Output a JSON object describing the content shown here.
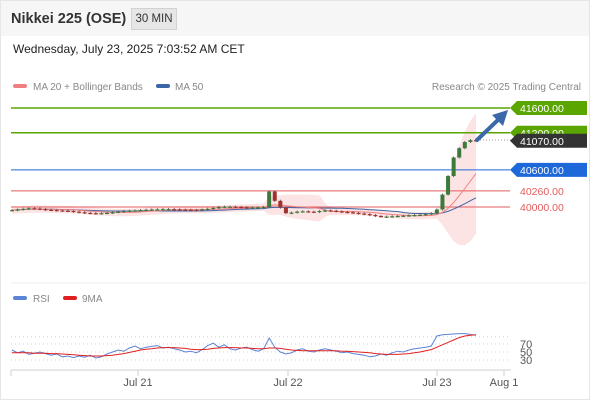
{
  "header": {
    "title": "Nikkei 225 (OSE)",
    "timeframe": "30 MIN"
  },
  "datetime": "Wednesday, July 23, 2025 7:03:52 AM CET",
  "attribution": "Research © 2025 Trading Central",
  "colors": {
    "ma20": "#f08080",
    "bands": "#fde4e4",
    "ma50": "#3b66a8",
    "candle_up": "#3b7a3b",
    "candle_down": "#a0322e",
    "target": "#5aa500",
    "pivot": "#1f68d9",
    "support": "#e35b5b",
    "rsi": "#5b84d6",
    "rsi_ma": "#e02020",
    "arrow": "#3a68a8"
  },
  "legend": [
    {
      "name": "MA 20 + Bollinger Bands",
      "color": "#f08080"
    },
    {
      "name": "MA 50",
      "color": "#3b66a8"
    }
  ],
  "chart_data": [
    {
      "type": "candlestick",
      "title": "Nikkei 225 (OSE)",
      "x_axis": {
        "ticks": [
          "Jul 21",
          "Jul 22",
          "Jul 23",
          "Aug 1"
        ]
      },
      "levels": [
        {
          "label": "41600.00",
          "value": 41600,
          "kind": "target",
          "color": "#5aa500",
          "text_color": "#ffffff"
        },
        {
          "label": "41200.00",
          "value": 41200,
          "kind": "target",
          "color": "#5aa500",
          "text_color": "#ffffff"
        },
        {
          "label": "41070.00",
          "value": 41070,
          "kind": "last",
          "color": "#333333",
          "text_color": "#ffffff"
        },
        {
          "label": "40600.00",
          "value": 40600,
          "kind": "pivot",
          "color": "#1f68d9",
          "text_color": "#ffffff"
        },
        {
          "label": "40260.00",
          "value": 40260,
          "kind": "support",
          "color": "#e35b5b",
          "text_color": "#e35b5b"
        },
        {
          "label": "40000.00",
          "value": 40000,
          "kind": "support",
          "color": "#e35b5b",
          "text_color": "#e35b5b"
        }
      ],
      "close_series": [
        39950,
        39960,
        39970,
        39980,
        39975,
        39965,
        39955,
        39950,
        39945,
        39940,
        39935,
        39925,
        39915,
        39905,
        39900,
        39895,
        39900,
        39905,
        39915,
        39925,
        39935,
        39940,
        39945,
        39950,
        39955,
        39960,
        39962,
        39965,
        39965,
        39962,
        39958,
        39955,
        39952,
        39950,
        39960,
        39970,
        39985,
        40000,
        40005,
        40005,
        40000,
        39995,
        39990,
        39992,
        39995,
        40000,
        40250,
        40100,
        39990,
        39900,
        39910,
        39925,
        39930,
        39925,
        39920,
        39935,
        39945,
        39940,
        39930,
        39920,
        39915,
        39905,
        39895,
        39885,
        39870,
        39855,
        39845,
        39845,
        39850,
        39855,
        39860,
        39865,
        39870,
        39875,
        39885,
        39900,
        39960,
        40200,
        40500,
        40800,
        40950,
        41050,
        41080,
        41070
      ],
      "current": 41070
    },
    {
      "type": "line",
      "title": "RSI",
      "legend": [
        "RSI",
        "9MA"
      ],
      "y_ticks": [
        30,
        50,
        70
      ],
      "series": [
        {
          "name": "RSI",
          "color": "#5b84d6",
          "values": [
            55,
            48,
            52,
            44,
            47,
            50,
            46,
            42,
            45,
            38,
            40,
            36,
            40,
            37,
            42,
            35,
            38,
            45,
            50,
            55,
            52,
            60,
            65,
            58,
            62,
            64,
            66,
            60,
            62,
            58,
            55,
            50,
            52,
            48,
            56,
            66,
            72,
            62,
            68,
            58,
            55,
            60,
            62,
            56,
            52,
            58,
            85,
            62,
            50,
            45,
            48,
            55,
            58,
            52,
            50,
            55,
            58,
            55,
            52,
            48,
            50,
            46,
            44,
            42,
            38,
            40,
            45,
            42,
            48,
            52,
            50,
            55,
            58,
            60,
            62,
            65,
            90,
            93,
            94,
            95,
            96,
            96,
            94,
            92
          ]
        },
        {
          "name": "9MA",
          "color": "#e02020",
          "values": [
            48,
            48,
            48,
            48,
            47,
            47,
            47,
            46,
            46,
            45,
            44,
            43,
            42,
            41,
            40,
            40,
            40,
            41,
            42,
            44,
            46,
            49,
            52,
            55,
            57,
            58,
            60,
            61,
            61,
            61,
            60,
            59,
            57,
            56,
            56,
            57,
            59,
            60,
            61,
            61,
            61,
            60,
            60,
            59,
            58,
            58,
            60,
            60,
            59,
            57,
            55,
            54,
            53,
            53,
            53,
            53,
            53,
            53,
            53,
            52,
            52,
            51,
            50,
            49,
            48,
            46,
            45,
            44,
            44,
            44,
            45,
            46,
            48,
            50,
            53,
            56,
            62,
            68,
            74,
            80,
            86,
            90,
            92,
            93
          ]
        }
      ]
    }
  ]
}
